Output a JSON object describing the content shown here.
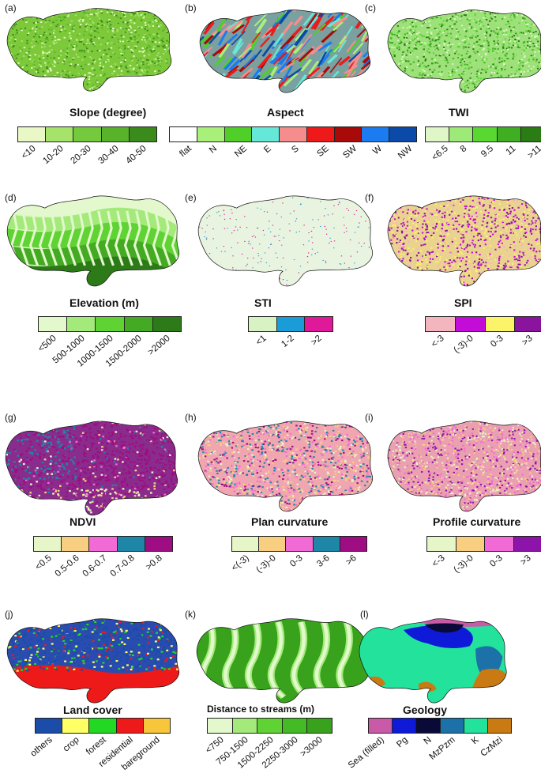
{
  "panels": [
    {
      "id": "a",
      "label": "(a)",
      "title": "Slope (degree)",
      "kind": "noise",
      "colors": [
        "#eaf8c8",
        "#a6e36a",
        "#75c93c",
        "#58b32b",
        "#3a8a1c"
      ],
      "bg": "#7ec93a",
      "ticks": [
        "<10",
        "10-20",
        "20-30",
        "30-40",
        "40-50"
      ]
    },
    {
      "id": "b",
      "label": "(b)",
      "title": "Aspect",
      "kind": "aspect",
      "colors": [
        "#ffffff",
        "#a9f07a",
        "#4fcf28",
        "#66e8d9",
        "#f58d8d",
        "#ee1a1a",
        "#a80a0a",
        "#1a7cf0",
        "#0b4aa8"
      ],
      "bg": "#7aa0a0",
      "ticks": [
        "flat",
        "N",
        "NE",
        "E",
        "S",
        "SE",
        "SW",
        "W",
        "NW"
      ]
    },
    {
      "id": "c",
      "label": "(c)",
      "title": "TWI",
      "kind": "noise",
      "colors": [
        "#dff7c8",
        "#9eea78",
        "#58d830",
        "#3fae22",
        "#2a7d14"
      ],
      "bg": "#9ee07a",
      "ticks": [
        "<6.5",
        "8",
        "9.5",
        "11",
        ">11"
      ]
    },
    {
      "id": "d",
      "label": "(d)",
      "title": "Elevation (m)",
      "kind": "elev",
      "colors": [
        "#e3f8cc",
        "#a3ea7a",
        "#5fd334",
        "#44aa24",
        "#2c7a18"
      ],
      "bg": "#d6f4b8",
      "ticks": [
        "<500",
        "500-1000",
        "1000-1500",
        "1500-2000",
        ">2000"
      ]
    },
    {
      "id": "e",
      "label": "(e)",
      "title": "STI",
      "kind": "sparse",
      "colors": [
        "#d9f2c4",
        "#1a9cd8",
        "#e0189a"
      ],
      "bg": "#e8f4e0",
      "ticks": [
        "<1",
        "1-2",
        ">2"
      ]
    },
    {
      "id": "f",
      "label": "(f)",
      "title": "SPI",
      "kind": "noise",
      "colors": [
        "#f4b6be",
        "#c40cd8",
        "#fbf368",
        "#8a149e"
      ],
      "bg": "#e9d38e",
      "ticks": [
        "<-3",
        "(-3)-0",
        "0-3",
        ">3"
      ]
    },
    {
      "id": "g",
      "label": "(g)",
      "title": "NDVI",
      "kind": "ndvi",
      "colors": [
        "#e6f6c8",
        "#f8cf80",
        "#f26ad6",
        "#1e86a6",
        "#9e0d82"
      ],
      "bg": "#8a2c8c",
      "ticks": [
        "<0.5",
        "0.5-0.6",
        "0.6-0.7",
        "0.7-0.8",
        ">0.8"
      ]
    },
    {
      "id": "h",
      "label": "(h)",
      "title": "Plan curvature",
      "kind": "noise",
      "colors": [
        "#e6f6c8",
        "#f8cf80",
        "#f26ad6",
        "#1e86a6",
        "#9e0d82"
      ],
      "bg": "#f0a6b0",
      "ticks": [
        "<(-3)",
        "(-3)-0",
        "0-3",
        "3-6",
        ">6"
      ]
    },
    {
      "id": "i",
      "label": "(i)",
      "title": "Profile curvature",
      "kind": "noise",
      "colors": [
        "#e6f6c8",
        "#f8cf80",
        "#f26ad6",
        "#8c14a8"
      ],
      "bg": "#eaa0b0",
      "ticks": [
        "<-3",
        "(-3)-0",
        "0-3",
        ">3"
      ]
    },
    {
      "id": "j",
      "label": "(j)",
      "title": "Land cover",
      "kind": "land",
      "colors": [
        "#1a4ca8",
        "#ffff66",
        "#22d822",
        "#ee1a1a",
        "#f7c63a"
      ],
      "bg": "#2a4cb0",
      "ticks": [
        "others",
        "crop",
        "forest",
        "residential",
        "bareground"
      ]
    },
    {
      "id": "k",
      "label": "(k)",
      "title": "Distance to streams (m)",
      "kind": "streams",
      "colors": [
        "#e3f8cc",
        "#a3ea7a",
        "#5fd334",
        "#44bb24",
        "#38a21c"
      ],
      "bg": "#38a21c",
      "ticks": [
        "<750",
        "750-1500",
        "1500-2250",
        "2250-3000",
        ">3000"
      ]
    },
    {
      "id": "l",
      "label": "(l)",
      "title": "Geology",
      "kind": "geology",
      "colors": [
        "#c85aa8",
        "#0f1ad8",
        "#0a0a38",
        "#1c72a8",
        "#22e29c",
        "#c97a12"
      ],
      "bg": "#22e29c",
      "ticks": [
        "Sea (filled)",
        "Pg",
        "N",
        "MzPzm",
        "K",
        "CzMzi"
      ]
    }
  ]
}
